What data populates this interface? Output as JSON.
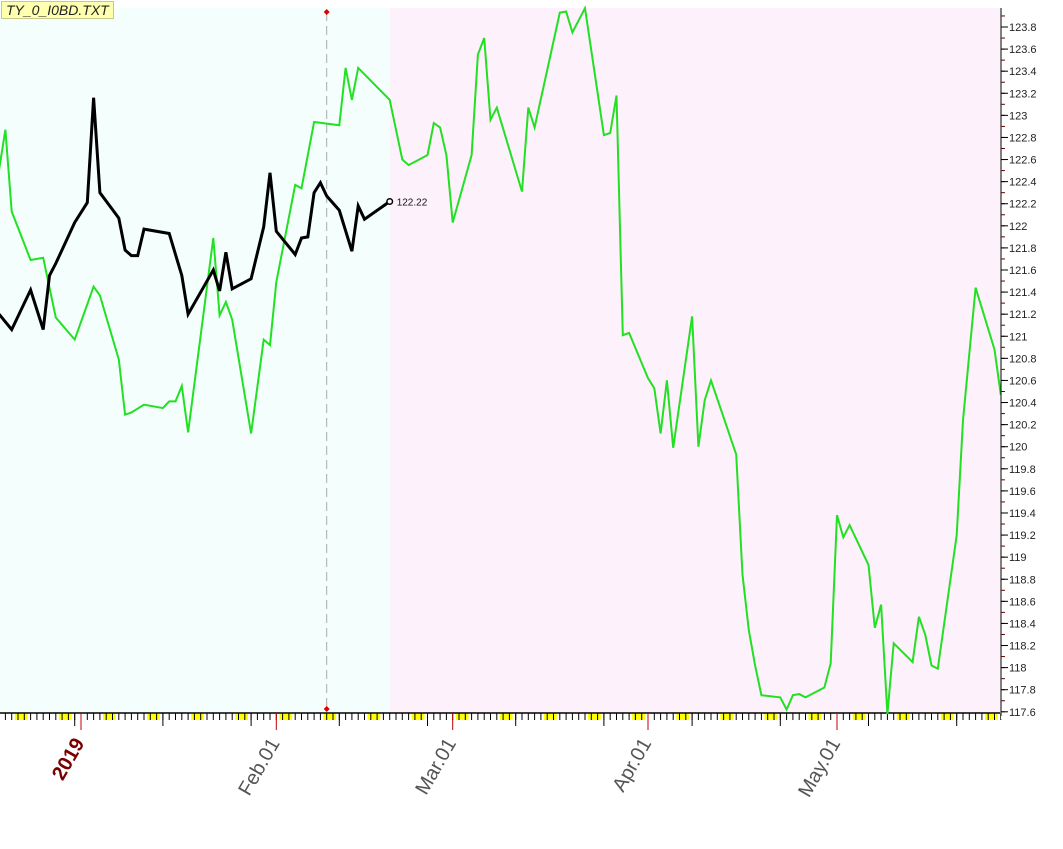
{
  "title": "TY_0_I0BD.TXT",
  "chart_data": {
    "type": "line",
    "title": "",
    "xlabel": "",
    "ylabel": "",
    "x_type": "date",
    "xlim": [
      "2018-12-19",
      "2019-05-27"
    ],
    "ylim": [
      117.6,
      123.8
    ],
    "y_axis_position": "right",
    "y_tick_step": 0.2,
    "y_ticks": [
      "117.6",
      "117.8",
      "118",
      "118.2",
      "118.4",
      "118.6",
      "118.8",
      "119",
      "119.2",
      "119.4",
      "119.6",
      "119.8",
      "120",
      "120.2",
      "120.4",
      "120.6",
      "120.8",
      "121",
      "121.2",
      "121.4",
      "121.6",
      "121.8",
      "122",
      "122.2",
      "122.4",
      "122.6",
      "122.8",
      "123",
      "123.2",
      "123.4",
      "123.6",
      "123.8"
    ],
    "x_ticks": [
      {
        "date": "2019-01-01",
        "label": "2019",
        "style": "year"
      },
      {
        "date": "2019-02-01",
        "label": "Feb.01",
        "style": "month"
      },
      {
        "date": "2019-03-01",
        "label": "Mar.01",
        "style": "month"
      },
      {
        "date": "2019-04-01",
        "label": "Apr.01",
        "style": "month"
      },
      {
        "date": "2019-05-01",
        "label": "May.01",
        "style": "month"
      }
    ],
    "weekend_highlight_color": "#ffff00",
    "grid": false,
    "regions": [
      {
        "from": "2018-12-19",
        "to": "2019-02-19",
        "color": "#f4fffd"
      },
      {
        "from": "2019-02-19",
        "to": "2019-05-27",
        "color": "#fdf1fb"
      }
    ],
    "cursor": {
      "date": "2019-02-09",
      "color": "#e00000"
    },
    "series": [
      {
        "color": "#22e022",
        "points": [
          [
            "2018-12-19",
            122.51
          ],
          [
            "2018-12-20",
            122.87
          ],
          [
            "2018-12-21",
            122.13
          ],
          [
            "2018-12-24",
            121.69
          ],
          [
            "2018-12-26",
            121.71
          ],
          [
            "2018-12-28",
            121.17
          ],
          [
            "2018-12-31",
            120.97
          ],
          [
            "2019-01-03",
            121.45
          ],
          [
            "2019-01-04",
            121.37
          ],
          [
            "2019-01-07",
            120.79
          ],
          [
            "2019-01-08",
            120.29
          ],
          [
            "2019-01-09",
            120.31
          ],
          [
            "2019-01-11",
            120.38
          ],
          [
            "2019-01-14",
            120.35
          ],
          [
            "2019-01-15",
            120.41
          ],
          [
            "2019-01-16",
            120.41
          ],
          [
            "2019-01-17",
            120.55
          ],
          [
            "2019-01-18",
            120.13
          ],
          [
            "2019-01-22",
            121.89
          ],
          [
            "2019-01-23",
            121.19
          ],
          [
            "2019-01-24",
            121.31
          ],
          [
            "2019-01-25",
            121.15
          ],
          [
            "2019-01-28",
            120.12
          ],
          [
            "2019-01-30",
            120.97
          ],
          [
            "2019-01-31",
            120.92
          ],
          [
            "2019-02-01",
            121.49
          ],
          [
            "2019-02-04",
            122.37
          ],
          [
            "2019-02-05",
            122.34
          ],
          [
            "2019-02-07",
            122.94
          ],
          [
            "2019-02-11",
            122.91
          ],
          [
            "2019-02-12",
            123.43
          ],
          [
            "2019-02-13",
            123.14
          ],
          [
            "2019-02-14",
            123.43
          ],
          [
            "2019-02-19",
            123.14
          ],
          [
            "2019-02-20",
            122.87
          ],
          [
            "2019-02-21",
            122.6
          ],
          [
            "2019-02-22",
            122.55
          ],
          [
            "2019-02-25",
            122.64
          ],
          [
            "2019-02-26",
            122.93
          ],
          [
            "2019-02-27",
            122.89
          ],
          [
            "2019-02-28",
            122.64
          ],
          [
            "2019-03-01",
            122.03
          ],
          [
            "2019-03-04",
            122.64
          ],
          [
            "2019-03-05",
            123.55
          ],
          [
            "2019-03-06",
            123.7
          ],
          [
            "2019-03-07",
            122.96
          ],
          [
            "2019-03-08",
            123.07
          ],
          [
            "2019-03-12",
            122.31
          ],
          [
            "2019-03-13",
            123.07
          ],
          [
            "2019-03-14",
            122.89
          ],
          [
            "2019-03-18",
            123.93
          ],
          [
            "2019-03-19",
            123.94
          ],
          [
            "2019-03-20",
            123.75
          ],
          [
            "2019-03-22",
            123.97
          ],
          [
            "2019-03-25",
            122.82
          ],
          [
            "2019-03-26",
            122.84
          ],
          [
            "2019-03-27",
            123.18
          ],
          [
            "2019-03-28",
            121.01
          ],
          [
            "2019-03-29",
            121.03
          ],
          [
            "2019-04-01",
            120.62
          ],
          [
            "2019-04-02",
            120.53
          ],
          [
            "2019-04-03",
            120.12
          ],
          [
            "2019-04-04",
            120.6
          ],
          [
            "2019-04-05",
            119.99
          ],
          [
            "2019-04-08",
            121.18
          ],
          [
            "2019-04-09",
            120.0
          ],
          [
            "2019-04-10",
            120.42
          ],
          [
            "2019-04-11",
            120.6
          ],
          [
            "2019-04-15",
            119.93
          ],
          [
            "2019-04-16",
            118.84
          ],
          [
            "2019-04-17",
            118.34
          ],
          [
            "2019-04-18",
            118.02
          ],
          [
            "2019-04-19",
            117.75
          ],
          [
            "2019-04-22",
            117.73
          ],
          [
            "2019-04-23",
            117.62
          ],
          [
            "2019-04-24",
            117.75
          ],
          [
            "2019-04-25",
            117.76
          ],
          [
            "2019-04-26",
            117.73
          ],
          [
            "2019-04-29",
            117.82
          ],
          [
            "2019-04-30",
            118.04
          ],
          [
            "2019-05-01",
            119.38
          ],
          [
            "2019-05-02",
            119.18
          ],
          [
            "2019-05-03",
            119.29
          ],
          [
            "2019-05-06",
            118.93
          ],
          [
            "2019-05-07",
            118.36
          ],
          [
            "2019-05-08",
            118.57
          ],
          [
            "2019-05-09",
            117.58
          ],
          [
            "2019-05-10",
            118.22
          ],
          [
            "2019-05-13",
            118.05
          ],
          [
            "2019-05-14",
            118.46
          ],
          [
            "2019-05-15",
            118.3
          ],
          [
            "2019-05-16",
            118.02
          ],
          [
            "2019-05-17",
            117.99
          ],
          [
            "2019-05-20",
            119.2
          ],
          [
            "2019-05-21",
            120.24
          ],
          [
            "2019-05-23",
            121.44
          ],
          [
            "2019-05-26",
            120.88
          ],
          [
            "2019-05-27",
            120.47
          ]
        ]
      },
      {
        "color": "#000000",
        "last_value_label": "122.22",
        "points": [
          [
            "2018-12-19",
            121.2
          ],
          [
            "2018-12-21",
            121.06
          ],
          [
            "2018-12-24",
            121.42
          ],
          [
            "2018-12-26",
            121.06
          ],
          [
            "2018-12-27",
            121.55
          ],
          [
            "2018-12-28",
            121.66
          ],
          [
            "2018-12-31",
            122.03
          ],
          [
            "2019-01-02",
            122.21
          ],
          [
            "2019-01-03",
            123.16
          ],
          [
            "2019-01-04",
            122.3
          ],
          [
            "2019-01-07",
            122.07
          ],
          [
            "2019-01-08",
            121.78
          ],
          [
            "2019-01-09",
            121.73
          ],
          [
            "2019-01-10",
            121.73
          ],
          [
            "2019-01-11",
            121.97
          ],
          [
            "2019-01-15",
            121.93
          ],
          [
            "2019-01-17",
            121.55
          ],
          [
            "2019-01-18",
            121.2
          ],
          [
            "2019-01-22",
            121.6
          ],
          [
            "2019-01-23",
            121.41
          ],
          [
            "2019-01-24",
            121.76
          ],
          [
            "2019-01-25",
            121.43
          ],
          [
            "2019-01-28",
            121.52
          ],
          [
            "2019-01-30",
            121.99
          ],
          [
            "2019-01-31",
            122.48
          ],
          [
            "2019-02-01",
            121.95
          ],
          [
            "2019-02-04",
            121.74
          ],
          [
            "2019-02-05",
            121.89
          ],
          [
            "2019-02-06",
            121.9
          ],
          [
            "2019-02-07",
            122.3
          ],
          [
            "2019-02-08",
            122.39
          ],
          [
            "2019-02-09",
            122.27
          ],
          [
            "2019-02-11",
            122.14
          ],
          [
            "2019-02-13",
            121.77
          ],
          [
            "2019-02-14",
            122.18
          ],
          [
            "2019-02-15",
            122.06
          ],
          [
            "2019-02-19",
            122.22
          ]
        ]
      }
    ]
  }
}
